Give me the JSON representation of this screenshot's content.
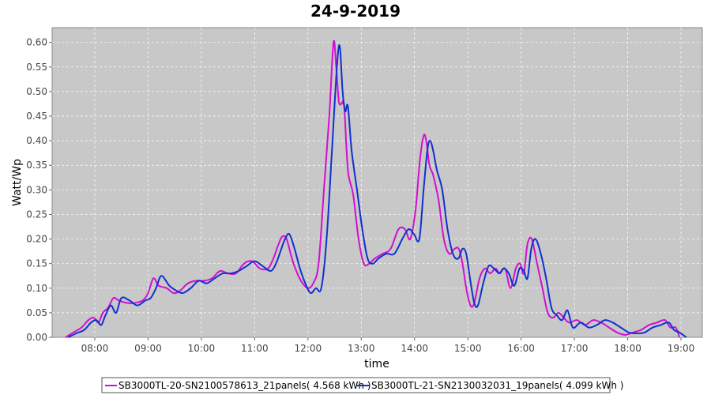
{
  "chart_data": {
    "type": "line",
    "title": "24-9-2019",
    "xlabel": "time",
    "ylabel": "Watt/Wp",
    "xlim": [
      7.2,
      19.4
    ],
    "ylim": [
      0,
      0.63
    ],
    "x_ticks": [
      {
        "value": 8,
        "label": "08:00"
      },
      {
        "value": 9,
        "label": "09:00"
      },
      {
        "value": 10,
        "label": "10:00"
      },
      {
        "value": 11,
        "label": "11:00"
      },
      {
        "value": 12,
        "label": "12:00"
      },
      {
        "value": 13,
        "label": "13:00"
      },
      {
        "value": 14,
        "label": "14:00"
      },
      {
        "value": 15,
        "label": "15:00"
      },
      {
        "value": 16,
        "label": "16:00"
      },
      {
        "value": 17,
        "label": "17:00"
      },
      {
        "value": 18,
        "label": "18:00"
      },
      {
        "value": 19,
        "label": "19:00"
      }
    ],
    "y_ticks": [
      {
        "value": 0.0,
        "label": "0.00"
      },
      {
        "value": 0.05,
        "label": "0.05"
      },
      {
        "value": 0.1,
        "label": "0.10"
      },
      {
        "value": 0.15,
        "label": "0.15"
      },
      {
        "value": 0.2,
        "label": "0.20"
      },
      {
        "value": 0.25,
        "label": "0.25"
      },
      {
        "value": 0.3,
        "label": "0.30"
      },
      {
        "value": 0.35,
        "label": "0.35"
      },
      {
        "value": 0.4,
        "label": "0.40"
      },
      {
        "value": 0.45,
        "label": "0.45"
      },
      {
        "value": 0.5,
        "label": "0.50"
      },
      {
        "value": 0.55,
        "label": "0.55"
      },
      {
        "value": 0.6,
        "label": "0.60"
      }
    ],
    "grid": true,
    "legend_position": "bottom",
    "plot_background": "#c8c8c8",
    "series": [
      {
        "name": "SB3000TL-20-SN2100578613_21panels( 4.568 kWh )",
        "color": "#d010d0",
        "x": [
          7.45,
          7.6,
          7.75,
          7.88,
          7.98,
          8.07,
          8.15,
          8.25,
          8.35,
          8.45,
          8.6,
          8.75,
          8.9,
          9.0,
          9.1,
          9.2,
          9.35,
          9.48,
          9.6,
          9.75,
          9.9,
          10.05,
          10.2,
          10.35,
          10.5,
          10.65,
          10.8,
          10.95,
          11.1,
          11.25,
          11.35,
          11.45,
          11.52,
          11.6,
          11.7,
          11.8,
          11.9,
          12.0,
          12.1,
          12.2,
          12.3,
          12.4,
          12.48,
          12.53,
          12.58,
          12.63,
          12.68,
          12.75,
          12.85,
          12.95,
          13.05,
          13.15,
          13.25,
          13.4,
          13.55,
          13.7,
          13.82,
          13.92,
          14.02,
          14.1,
          14.17,
          14.22,
          14.28,
          14.35,
          14.45,
          14.55,
          14.65,
          14.75,
          14.83,
          14.9,
          14.97,
          15.05,
          15.12,
          15.22,
          15.32,
          15.42,
          15.52,
          15.6,
          15.7,
          15.8,
          15.9,
          15.98,
          16.05,
          16.12,
          16.2,
          16.3,
          16.4,
          16.5,
          16.6,
          16.7,
          16.8,
          16.9,
          17.05,
          17.2,
          17.35,
          17.5,
          17.65,
          17.8,
          17.95,
          18.1,
          18.25,
          18.4,
          18.55,
          18.7,
          18.8,
          18.9,
          18.97
        ],
        "y": [
          0.0,
          0.01,
          0.02,
          0.035,
          0.04,
          0.03,
          0.05,
          0.06,
          0.08,
          0.075,
          0.07,
          0.07,
          0.075,
          0.09,
          0.12,
          0.105,
          0.1,
          0.09,
          0.095,
          0.11,
          0.115,
          0.115,
          0.12,
          0.135,
          0.13,
          0.13,
          0.15,
          0.155,
          0.14,
          0.14,
          0.16,
          0.19,
          0.205,
          0.2,
          0.16,
          0.13,
          0.11,
          0.1,
          0.11,
          0.15,
          0.3,
          0.45,
          0.6,
          0.55,
          0.48,
          0.475,
          0.47,
          0.34,
          0.29,
          0.2,
          0.15,
          0.15,
          0.16,
          0.17,
          0.18,
          0.22,
          0.22,
          0.2,
          0.26,
          0.36,
          0.41,
          0.4,
          0.35,
          0.33,
          0.28,
          0.2,
          0.17,
          0.18,
          0.18,
          0.15,
          0.1,
          0.065,
          0.07,
          0.12,
          0.14,
          0.13,
          0.14,
          0.13,
          0.14,
          0.1,
          0.14,
          0.15,
          0.13,
          0.19,
          0.2,
          0.15,
          0.1,
          0.05,
          0.04,
          0.05,
          0.04,
          0.03,
          0.035,
          0.025,
          0.035,
          0.03,
          0.02,
          0.01,
          0.005,
          0.01,
          0.015,
          0.025,
          0.03,
          0.035,
          0.02,
          0.02,
          0.0
        ]
      },
      {
        "name": "SB3000TL-21-SN2130032031_19panels( 4.099 kWh )",
        "color": "#1030d0",
        "x": [
          7.5,
          7.65,
          7.8,
          7.93,
          8.03,
          8.12,
          8.2,
          8.3,
          8.4,
          8.5,
          8.65,
          8.8,
          8.95,
          9.05,
          9.15,
          9.25,
          9.4,
          9.53,
          9.65,
          9.8,
          9.95,
          10.1,
          10.25,
          10.4,
          10.55,
          10.7,
          10.85,
          11.0,
          11.15,
          11.3,
          11.4,
          11.5,
          11.57,
          11.65,
          11.75,
          11.85,
          11.95,
          12.05,
          12.15,
          12.25,
          12.35,
          12.45,
          12.55,
          12.6,
          12.65,
          12.7,
          12.75,
          12.82,
          12.92,
          13.02,
          13.12,
          13.22,
          13.32,
          13.47,
          13.62,
          13.77,
          13.89,
          13.99,
          14.09,
          14.17,
          14.24,
          14.29,
          14.35,
          14.42,
          14.52,
          14.62,
          14.72,
          14.82,
          14.9,
          14.97,
          15.04,
          15.12,
          15.19,
          15.29,
          15.39,
          15.49,
          15.59,
          15.67,
          15.77,
          15.87,
          15.97,
          16.05,
          16.12,
          16.19,
          16.27,
          16.37,
          16.47,
          16.57,
          16.67,
          16.77,
          16.87,
          16.97,
          17.12,
          17.27,
          17.42,
          17.57,
          17.72,
          17.87,
          18.02,
          18.17,
          18.32,
          18.47,
          18.62,
          18.77,
          18.87,
          18.97,
          19.1
        ],
        "y": [
          0.0,
          0.008,
          0.015,
          0.03,
          0.035,
          0.025,
          0.045,
          0.065,
          0.05,
          0.08,
          0.075,
          0.065,
          0.075,
          0.08,
          0.1,
          0.125,
          0.105,
          0.095,
          0.09,
          0.1,
          0.115,
          0.11,
          0.12,
          0.13,
          0.13,
          0.135,
          0.145,
          0.155,
          0.145,
          0.135,
          0.15,
          0.18,
          0.2,
          0.21,
          0.18,
          0.14,
          0.11,
          0.09,
          0.1,
          0.1,
          0.2,
          0.38,
          0.56,
          0.59,
          0.5,
          0.46,
          0.47,
          0.38,
          0.3,
          0.22,
          0.16,
          0.15,
          0.16,
          0.17,
          0.17,
          0.2,
          0.22,
          0.21,
          0.2,
          0.3,
          0.38,
          0.4,
          0.38,
          0.34,
          0.3,
          0.22,
          0.17,
          0.16,
          0.18,
          0.17,
          0.12,
          0.07,
          0.065,
          0.11,
          0.145,
          0.14,
          0.13,
          0.14,
          0.13,
          0.105,
          0.14,
          0.135,
          0.12,
          0.18,
          0.2,
          0.17,
          0.12,
          0.06,
          0.045,
          0.035,
          0.055,
          0.02,
          0.03,
          0.02,
          0.025,
          0.035,
          0.03,
          0.02,
          0.01,
          0.008,
          0.01,
          0.02,
          0.025,
          0.03,
          0.015,
          0.01,
          0.0
        ]
      }
    ]
  }
}
